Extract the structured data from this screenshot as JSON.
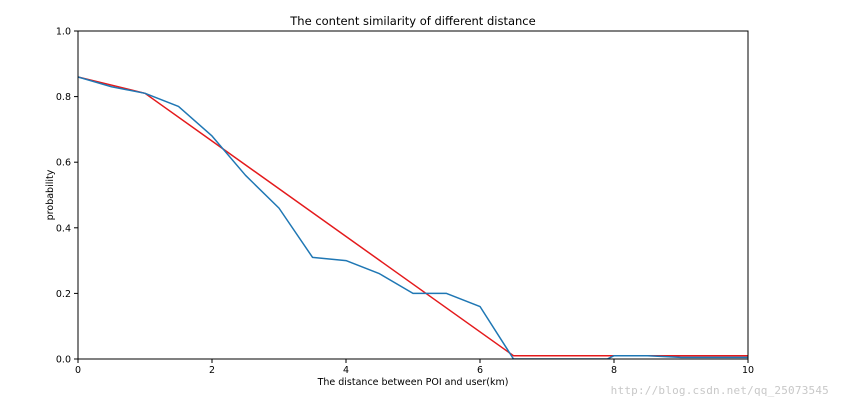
{
  "chart_data": {
    "type": "line",
    "title": "The content similarity of different distance",
    "xlabel": "The distance between POI  and user(km)",
    "ylabel": "probability",
    "xlim": [
      0,
      10
    ],
    "ylim": [
      0,
      1.0
    ],
    "xticks": [
      0,
      2,
      4,
      6,
      8,
      10
    ],
    "xtick_labels": [
      "0",
      "2",
      "4",
      "6",
      "8",
      "10"
    ],
    "yticks": [
      0.0,
      0.2,
      0.4,
      0.6,
      0.8,
      1.0
    ],
    "ytick_labels": [
      "0.0",
      "0.2",
      "0.4",
      "0.6",
      "0.8",
      "1.0"
    ],
    "grid": false,
    "series": [
      {
        "color": "#e41a1c",
        "x": [
          0,
          1,
          6.5,
          10
        ],
        "y": [
          0.86,
          0.81,
          0.01,
          0.01
        ]
      },
      {
        "color": "#1f77b4",
        "x": [
          0,
          0.5,
          1,
          1.5,
          2,
          2.5,
          3,
          3.5,
          4,
          4.5,
          5,
          5.5,
          6,
          6.5,
          7,
          7.5,
          7.9,
          8,
          8.5,
          9,
          9.5,
          10
        ],
        "y": [
          0.86,
          0.83,
          0.81,
          0.77,
          0.68,
          0.56,
          0.46,
          0.31,
          0.3,
          0.26,
          0.2,
          0.2,
          0.16,
          0.0,
          0.0,
          0.0,
          0.0,
          0.01,
          0.01,
          0.005,
          0.005,
          0.005
        ]
      }
    ]
  },
  "watermark": "http://blog.csdn.net/qq_25073545"
}
